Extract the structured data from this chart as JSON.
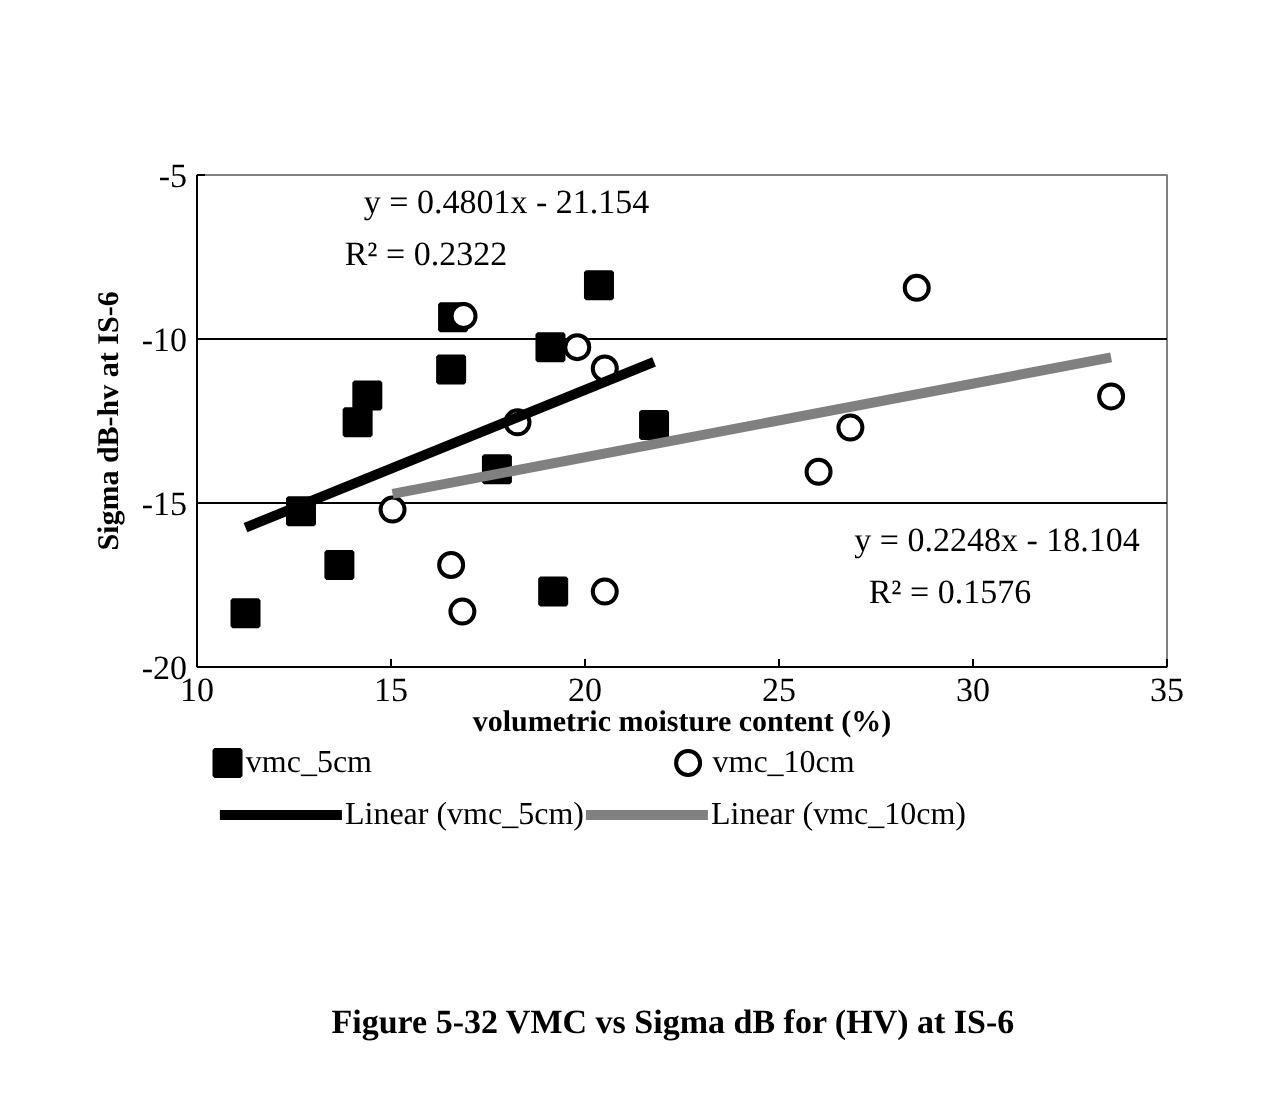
{
  "chart_data": {
    "type": "scatter",
    "xlabel": "volumetric moisture content (%)",
    "ylabel": "Sigma dB-hv at IS-6",
    "xlim": [
      10,
      35
    ],
    "xticks": [
      10,
      15,
      20,
      25,
      30,
      35
    ],
    "ylim": [
      -20,
      -5
    ],
    "yticks": [
      -20,
      -15,
      -10,
      -5
    ],
    "grid": "y",
    "legend": "bottom",
    "series": [
      {
        "name": "vmc_5cm",
        "type": "scatter",
        "marker": "square",
        "color": "#000000",
        "x": [
          11.25,
          12.68,
          13.67,
          14.14,
          14.39,
          16.55,
          16.6,
          17.73,
          19.11,
          19.18,
          20.36,
          21.78
        ],
        "values": [
          -18.36,
          -15.25,
          -16.89,
          -12.54,
          -11.72,
          -10.93,
          -9.34,
          -13.97,
          -10.25,
          -17.7,
          -8.36,
          -12.62
        ]
      },
      {
        "name": "vmc_10cm",
        "type": "scatter",
        "marker": "circle",
        "color": "#000000",
        "x": [
          15.04,
          16.55,
          16.84,
          16.87,
          18.26,
          19.8,
          20.51,
          20.51,
          26.02,
          26.84,
          28.55,
          33.56
        ],
        "values": [
          -15.2,
          -16.89,
          -18.31,
          -9.3,
          -12.54,
          -10.25,
          -10.9,
          -17.7,
          -14.05,
          -12.7,
          -8.44,
          -11.75
        ]
      },
      {
        "name": "Linear (vmc_5cm)",
        "type": "line",
        "color": "#000000",
        "x": [
          11.25,
          21.78
        ],
        "values": [
          -15.75,
          -10.7
        ]
      },
      {
        "name": "Linear (vmc_10cm)",
        "type": "line",
        "color": "#808080",
        "x": [
          15.04,
          33.56
        ],
        "values": [
          -14.72,
          -10.56
        ]
      }
    ],
    "annotations": [
      "y = 0.4801x - 21.154\nR² = 0.2322",
      "y = 0.2248x - 18.104\nR² = 0.1576",
      "Figure 5-32  VMC  vs Sigma dB for (HV) at IS-6"
    ]
  }
}
